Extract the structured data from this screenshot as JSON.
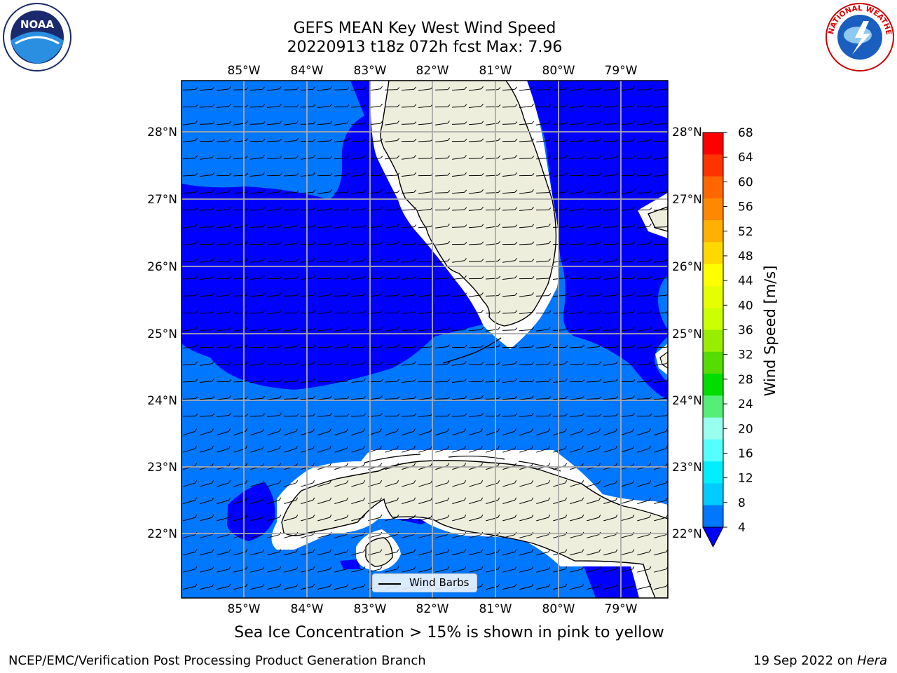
{
  "header": {
    "title_line1": "GEFS MEAN Key West Wind Speed",
    "title_line2": "20220913 t18z 072h fcst   Max: 7.96"
  },
  "logos": {
    "left": {
      "text": "NOAA",
      "icon": "noaa-logo-icon"
    },
    "right": {
      "text": "NATIONAL WEATHER SERVICE",
      "icon": "nws-logo-icon"
    }
  },
  "map": {
    "lon_ticks": [
      "85°W",
      "84°W",
      "83°W",
      "82°W",
      "81°W",
      "80°W",
      "79°W"
    ],
    "lat_ticks": [
      "28°N",
      "27°N",
      "26°N",
      "25°N",
      "24°N",
      "23°N",
      "22°N"
    ],
    "legend_label": "Wind Barbs"
  },
  "colorbar": {
    "label": "Wind Speed [m/s]",
    "ticks": [
      "68",
      "64",
      "60",
      "56",
      "52",
      "48",
      "44",
      "40",
      "36",
      "32",
      "28",
      "24",
      "20",
      "16",
      "12",
      "8",
      "4"
    ],
    "colors": [
      "#ff0000",
      "#ff3300",
      "#ff6600",
      "#ff8800",
      "#ffb000",
      "#ffd800",
      "#ffff00",
      "#e6ff00",
      "#ccff00",
      "#99ee00",
      "#55dd00",
      "#00dd00",
      "#55ee77",
      "#99ffee",
      "#55ffff",
      "#00eeff",
      "#00ccff",
      "#0077ff"
    ],
    "extend_color": "#0000ff"
  },
  "caption": "Sea Ice Concentration > 15% is shown in pink to yellow",
  "footer": {
    "left": "NCEP/EMC/Verification Post Processing Product Generation Branch",
    "right_date": "19 Sep 2022 on ",
    "right_host": "Hera"
  },
  "colors": {
    "dark_blue": "#0000ff",
    "mid_blue": "#0077ff",
    "land": "#eeeedd",
    "grid": "#aaaaaa"
  }
}
